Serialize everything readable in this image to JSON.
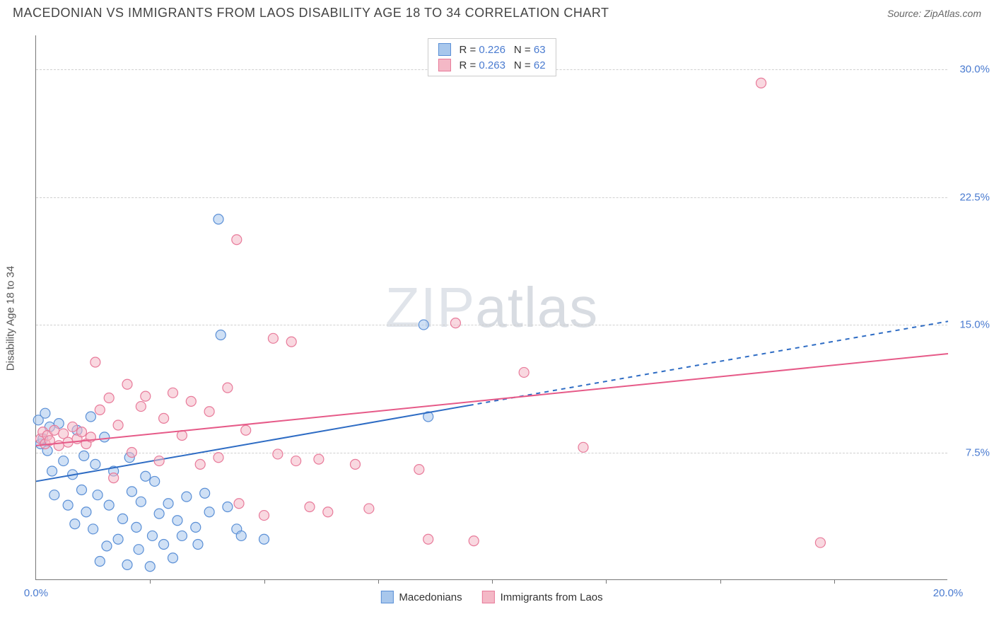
{
  "title": "MACEDONIAN VS IMMIGRANTS FROM LAOS DISABILITY AGE 18 TO 34 CORRELATION CHART",
  "source": "Source: ZipAtlas.com",
  "ylabel": "Disability Age 18 to 34",
  "watermark_a": "ZIP",
  "watermark_b": "atlas",
  "chart": {
    "type": "scatter",
    "xlim": [
      0,
      20
    ],
    "ylim": [
      0,
      32
    ],
    "y_ticks": [
      7.5,
      15.0,
      22.5,
      30.0
    ],
    "y_tick_labels": [
      "7.5%",
      "15.0%",
      "22.5%",
      "30.0%"
    ],
    "x_ticks": [
      0,
      10,
      20
    ],
    "x_tick_labels": [
      "0.0%",
      "",
      "20.0%"
    ],
    "x_minor_ticks": [
      2.5,
      5,
      7.5,
      10,
      12.5,
      15,
      17.5
    ],
    "grid_color": "#d0d0d0",
    "background_color": "#ffffff",
    "marker_radius": 7,
    "marker_stroke_width": 1.2,
    "series": [
      {
        "name": "Macedonians",
        "fill": "#a8c7ec",
        "fill_opacity": 0.55,
        "stroke": "#5a8fd6",
        "line_color": "#2e6cc4",
        "line_width": 2,
        "dash_after_x": 9.5,
        "r": 0.226,
        "n": 63,
        "reg_y0": 5.8,
        "reg_y1": 15.2,
        "points": [
          [
            0.05,
            9.4
          ],
          [
            0.1,
            8.0
          ],
          [
            0.15,
            8.3
          ],
          [
            0.2,
            9.8
          ],
          [
            0.25,
            7.6
          ],
          [
            0.3,
            9.0
          ],
          [
            0.35,
            6.4
          ],
          [
            0.4,
            5.0
          ],
          [
            0.5,
            9.2
          ],
          [
            0.6,
            7.0
          ],
          [
            0.7,
            4.4
          ],
          [
            0.8,
            6.2
          ],
          [
            0.85,
            3.3
          ],
          [
            0.9,
            8.8
          ],
          [
            1.0,
            5.3
          ],
          [
            1.05,
            7.3
          ],
          [
            1.1,
            4.0
          ],
          [
            1.2,
            9.6
          ],
          [
            1.25,
            3.0
          ],
          [
            1.3,
            6.8
          ],
          [
            1.35,
            5.0
          ],
          [
            1.4,
            1.1
          ],
          [
            1.5,
            8.4
          ],
          [
            1.55,
            2.0
          ],
          [
            1.6,
            4.4
          ],
          [
            1.7,
            6.4
          ],
          [
            1.8,
            2.4
          ],
          [
            1.9,
            3.6
          ],
          [
            2.0,
            0.9
          ],
          [
            2.05,
            7.2
          ],
          [
            2.1,
            5.2
          ],
          [
            2.2,
            3.1
          ],
          [
            2.25,
            1.8
          ],
          [
            2.3,
            4.6
          ],
          [
            2.4,
            6.1
          ],
          [
            2.5,
            0.8
          ],
          [
            2.55,
            2.6
          ],
          [
            2.6,
            5.8
          ],
          [
            2.7,
            3.9
          ],
          [
            2.8,
            2.1
          ],
          [
            2.9,
            4.5
          ],
          [
            3.0,
            1.3
          ],
          [
            3.1,
            3.5
          ],
          [
            3.2,
            2.6
          ],
          [
            3.3,
            4.9
          ],
          [
            3.5,
            3.1
          ],
          [
            3.55,
            2.1
          ],
          [
            3.7,
            5.1
          ],
          [
            3.8,
            4.0
          ],
          [
            4.0,
            21.2
          ],
          [
            4.05,
            14.4
          ],
          [
            4.2,
            4.3
          ],
          [
            4.4,
            3.0
          ],
          [
            4.5,
            2.6
          ],
          [
            5.0,
            2.4
          ],
          [
            8.5,
            15.0
          ],
          [
            8.6,
            9.6
          ]
        ]
      },
      {
        "name": "Immigrants from Laos",
        "fill": "#f4b8c6",
        "fill_opacity": 0.55,
        "stroke": "#e87a9a",
        "line_color": "#e65a88",
        "line_width": 2,
        "dash_after_x": 20,
        "r": 0.263,
        "n": 62,
        "reg_y0": 7.9,
        "reg_y1": 13.3,
        "points": [
          [
            0.1,
            8.3
          ],
          [
            0.15,
            8.7
          ],
          [
            0.2,
            8.0
          ],
          [
            0.25,
            8.5
          ],
          [
            0.3,
            8.2
          ],
          [
            0.4,
            8.8
          ],
          [
            0.5,
            7.9
          ],
          [
            0.6,
            8.6
          ],
          [
            0.7,
            8.1
          ],
          [
            0.8,
            9.0
          ],
          [
            0.9,
            8.3
          ],
          [
            1.0,
            8.7
          ],
          [
            1.1,
            8.0
          ],
          [
            1.2,
            8.4
          ],
          [
            1.3,
            12.8
          ],
          [
            1.4,
            10.0
          ],
          [
            1.6,
            10.7
          ],
          [
            1.7,
            6.0
          ],
          [
            1.8,
            9.1
          ],
          [
            2.0,
            11.5
          ],
          [
            2.1,
            7.5
          ],
          [
            2.3,
            10.2
          ],
          [
            2.4,
            10.8
          ],
          [
            2.7,
            7.0
          ],
          [
            2.8,
            9.5
          ],
          [
            3.0,
            11.0
          ],
          [
            3.2,
            8.5
          ],
          [
            3.4,
            10.5
          ],
          [
            3.6,
            6.8
          ],
          [
            3.8,
            9.9
          ],
          [
            4.0,
            7.2
          ],
          [
            4.2,
            11.3
          ],
          [
            4.4,
            20.0
          ],
          [
            4.45,
            4.5
          ],
          [
            4.6,
            8.8
          ],
          [
            5.0,
            3.8
          ],
          [
            5.2,
            14.2
          ],
          [
            5.3,
            7.4
          ],
          [
            5.6,
            14.0
          ],
          [
            5.7,
            7.0
          ],
          [
            6.0,
            4.3
          ],
          [
            6.2,
            7.1
          ],
          [
            6.4,
            4.0
          ],
          [
            7.0,
            6.8
          ],
          [
            7.3,
            4.2
          ],
          [
            8.4,
            6.5
          ],
          [
            8.6,
            2.4
          ],
          [
            9.2,
            15.1
          ],
          [
            9.6,
            2.3
          ],
          [
            10.7,
            12.2
          ],
          [
            12.0,
            7.8
          ],
          [
            15.9,
            29.2
          ],
          [
            17.2,
            2.2
          ]
        ]
      }
    ]
  },
  "legend_bottom": [
    {
      "swatch_fill": "#a8c7ec",
      "swatch_stroke": "#5a8fd6",
      "label": "Macedonians"
    },
    {
      "swatch_fill": "#f4b8c6",
      "swatch_stroke": "#e87a9a",
      "label": "Immigrants from Laos"
    }
  ]
}
